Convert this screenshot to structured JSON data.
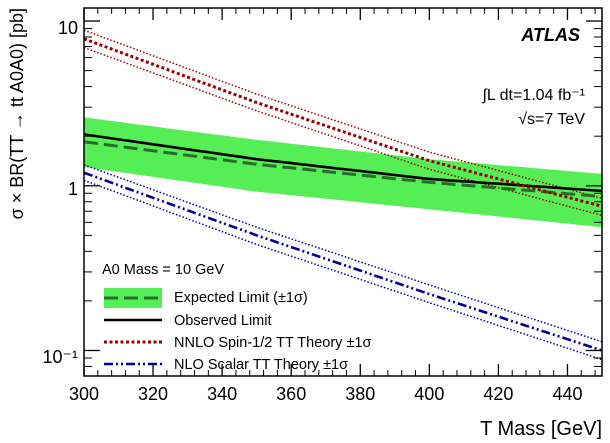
{
  "chart_data": {
    "type": "line",
    "xlabel": "T Mass [GeV]",
    "ylabel": "σ × BR(TT → tt A0A0) [pb]",
    "xlim": [
      300,
      450
    ],
    "ylim": [
      0.07,
      12
    ],
    "yscale": "log",
    "x_ticks": [
      "300",
      "320",
      "340",
      "360",
      "380",
      "400",
      "420",
      "440"
    ],
    "y_ticks": [
      "10⁻¹",
      "1",
      "10"
    ],
    "annotations": {
      "experiment": "ATLAS",
      "lumi": "∫L dt=1.04 fb⁻¹",
      "energy": "√s=7 TeV",
      "legend_header": "A0 Mass = 10 GeV"
    },
    "legend_position": "bottom-left",
    "colors": {
      "band": "#55ee55",
      "expected": "#2a6d2a",
      "observed": "#000000",
      "spin_half": "#990000",
      "scalar": "#000099"
    },
    "series": [
      {
        "name": "Expected Limit (±1σ)",
        "style": "dashed-with-band",
        "x": [
          300,
          350,
          400,
          450
        ],
        "values": [
          1.85,
          1.35,
          1.05,
          0.86
        ],
        "band_low": [
          1.3,
          0.92,
          0.72,
          0.56
        ],
        "band_high": [
          2.6,
          1.9,
          1.45,
          1.18
        ]
      },
      {
        "name": "Observed Limit",
        "style": "solid",
        "x": [
          300,
          350,
          400,
          450
        ],
        "values": [
          2.05,
          1.45,
          1.1,
          0.93
        ]
      },
      {
        "name": "NNLO Spin-1/2 TT Theory ±1σ",
        "style": "dotted-with-band",
        "x": [
          300,
          350,
          400,
          450
        ],
        "values": [
          7.8,
          3.2,
          1.42,
          0.75
        ],
        "band_low": [
          6.9,
          2.85,
          1.26,
          0.66
        ],
        "band_high": [
          8.8,
          3.6,
          1.6,
          0.84
        ]
      },
      {
        "name": "NLO Scalar TT Theory ±1σ",
        "style": "dashdot-with-band",
        "x": [
          300,
          350,
          400,
          450
        ],
        "values": [
          1.2,
          0.5,
          0.22,
          0.1
        ],
        "band_low": [
          1.08,
          0.44,
          0.195,
          0.088
        ],
        "band_high": [
          1.34,
          0.56,
          0.25,
          0.113
        ]
      }
    ]
  }
}
